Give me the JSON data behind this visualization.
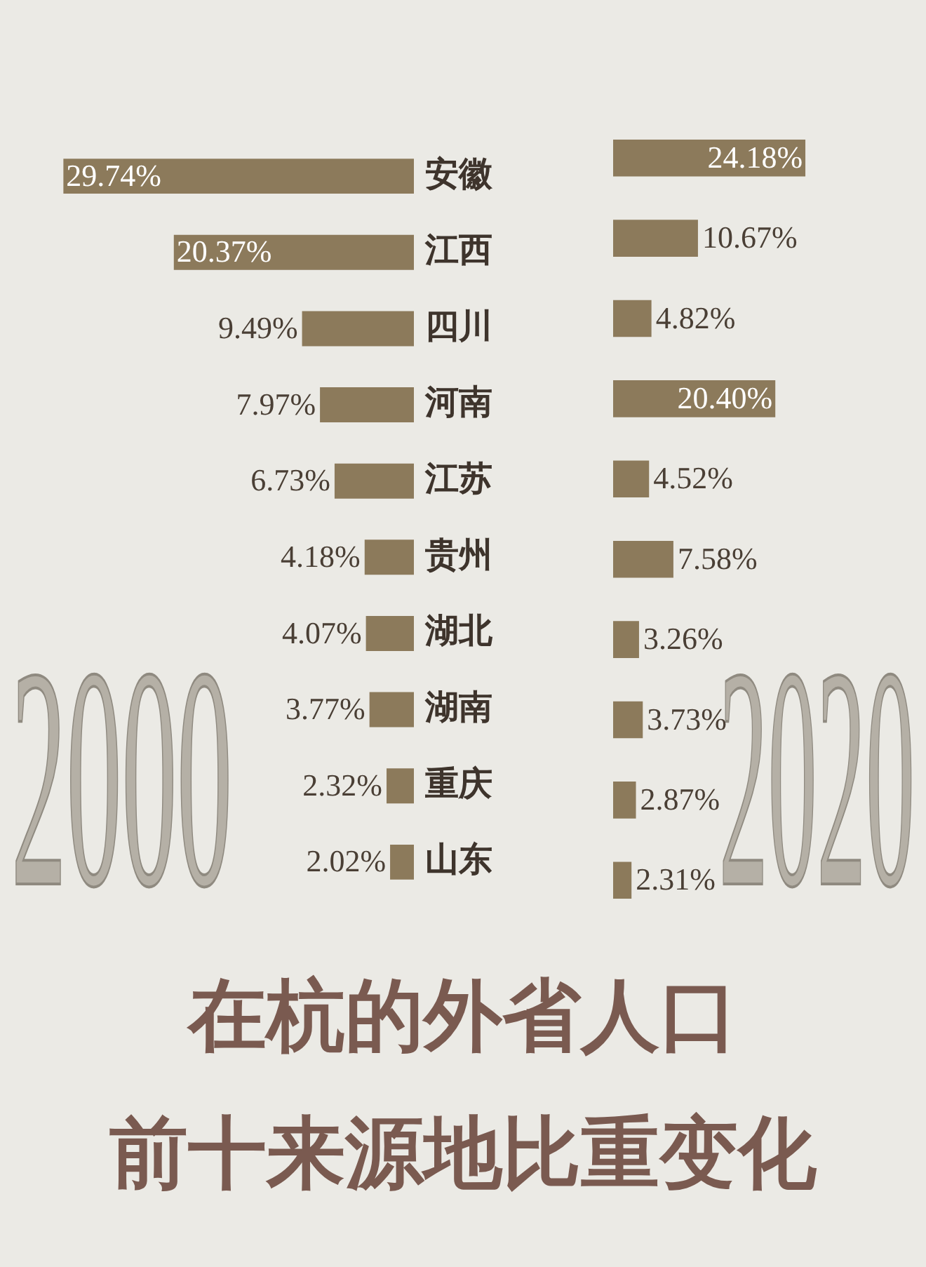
{
  "chart_data": [
    {
      "type": "bar",
      "orientation": "horizontal",
      "categories": [
        "安徽",
        "江西",
        "四川",
        "河南",
        "江苏",
        "贵州",
        "湖北",
        "湖南",
        "重庆",
        "山东"
      ],
      "tick_labels": "y",
      "title": "在杭的外省人口",
      "subtitle": "前十来源地比重变化",
      "series": [
        {
          "name": "2000",
          "color": "#8c7a5b",
          "values": [
            29.74,
            20.37,
            9.49,
            7.97,
            6.73,
            4.18,
            4.07,
            3.77,
            2.32,
            2.02
          ],
          "value_labels": [
            "29.74%",
            "20.37%",
            "9.49%",
            "7.97%",
            "6.73%",
            "4.18%",
            "4.07%",
            "3.77%",
            "2.32%",
            "2.02%"
          ]
        }
      ]
    },
    {
      "type": "bar",
      "orientation": "horizontal",
      "categories": [
        null,
        null,
        null,
        null,
        null,
        null,
        null,
        null,
        null,
        null
      ],
      "tick_labels": false,
      "series": [
        {
          "name": "2020",
          "color": "#8c7a5b",
          "values": [
            24.18,
            10.67,
            4.82,
            20.4,
            4.52,
            7.58,
            3.26,
            3.73,
            2.87,
            2.31
          ],
          "value_labels": [
            "24.18%",
            "10.67%",
            "4.82%",
            "20.40%",
            "4.52%",
            "7.58%",
            "3.26%",
            "3.73%",
            "2.87%",
            "2.31%"
          ]
        }
      ]
    }
  ]
}
